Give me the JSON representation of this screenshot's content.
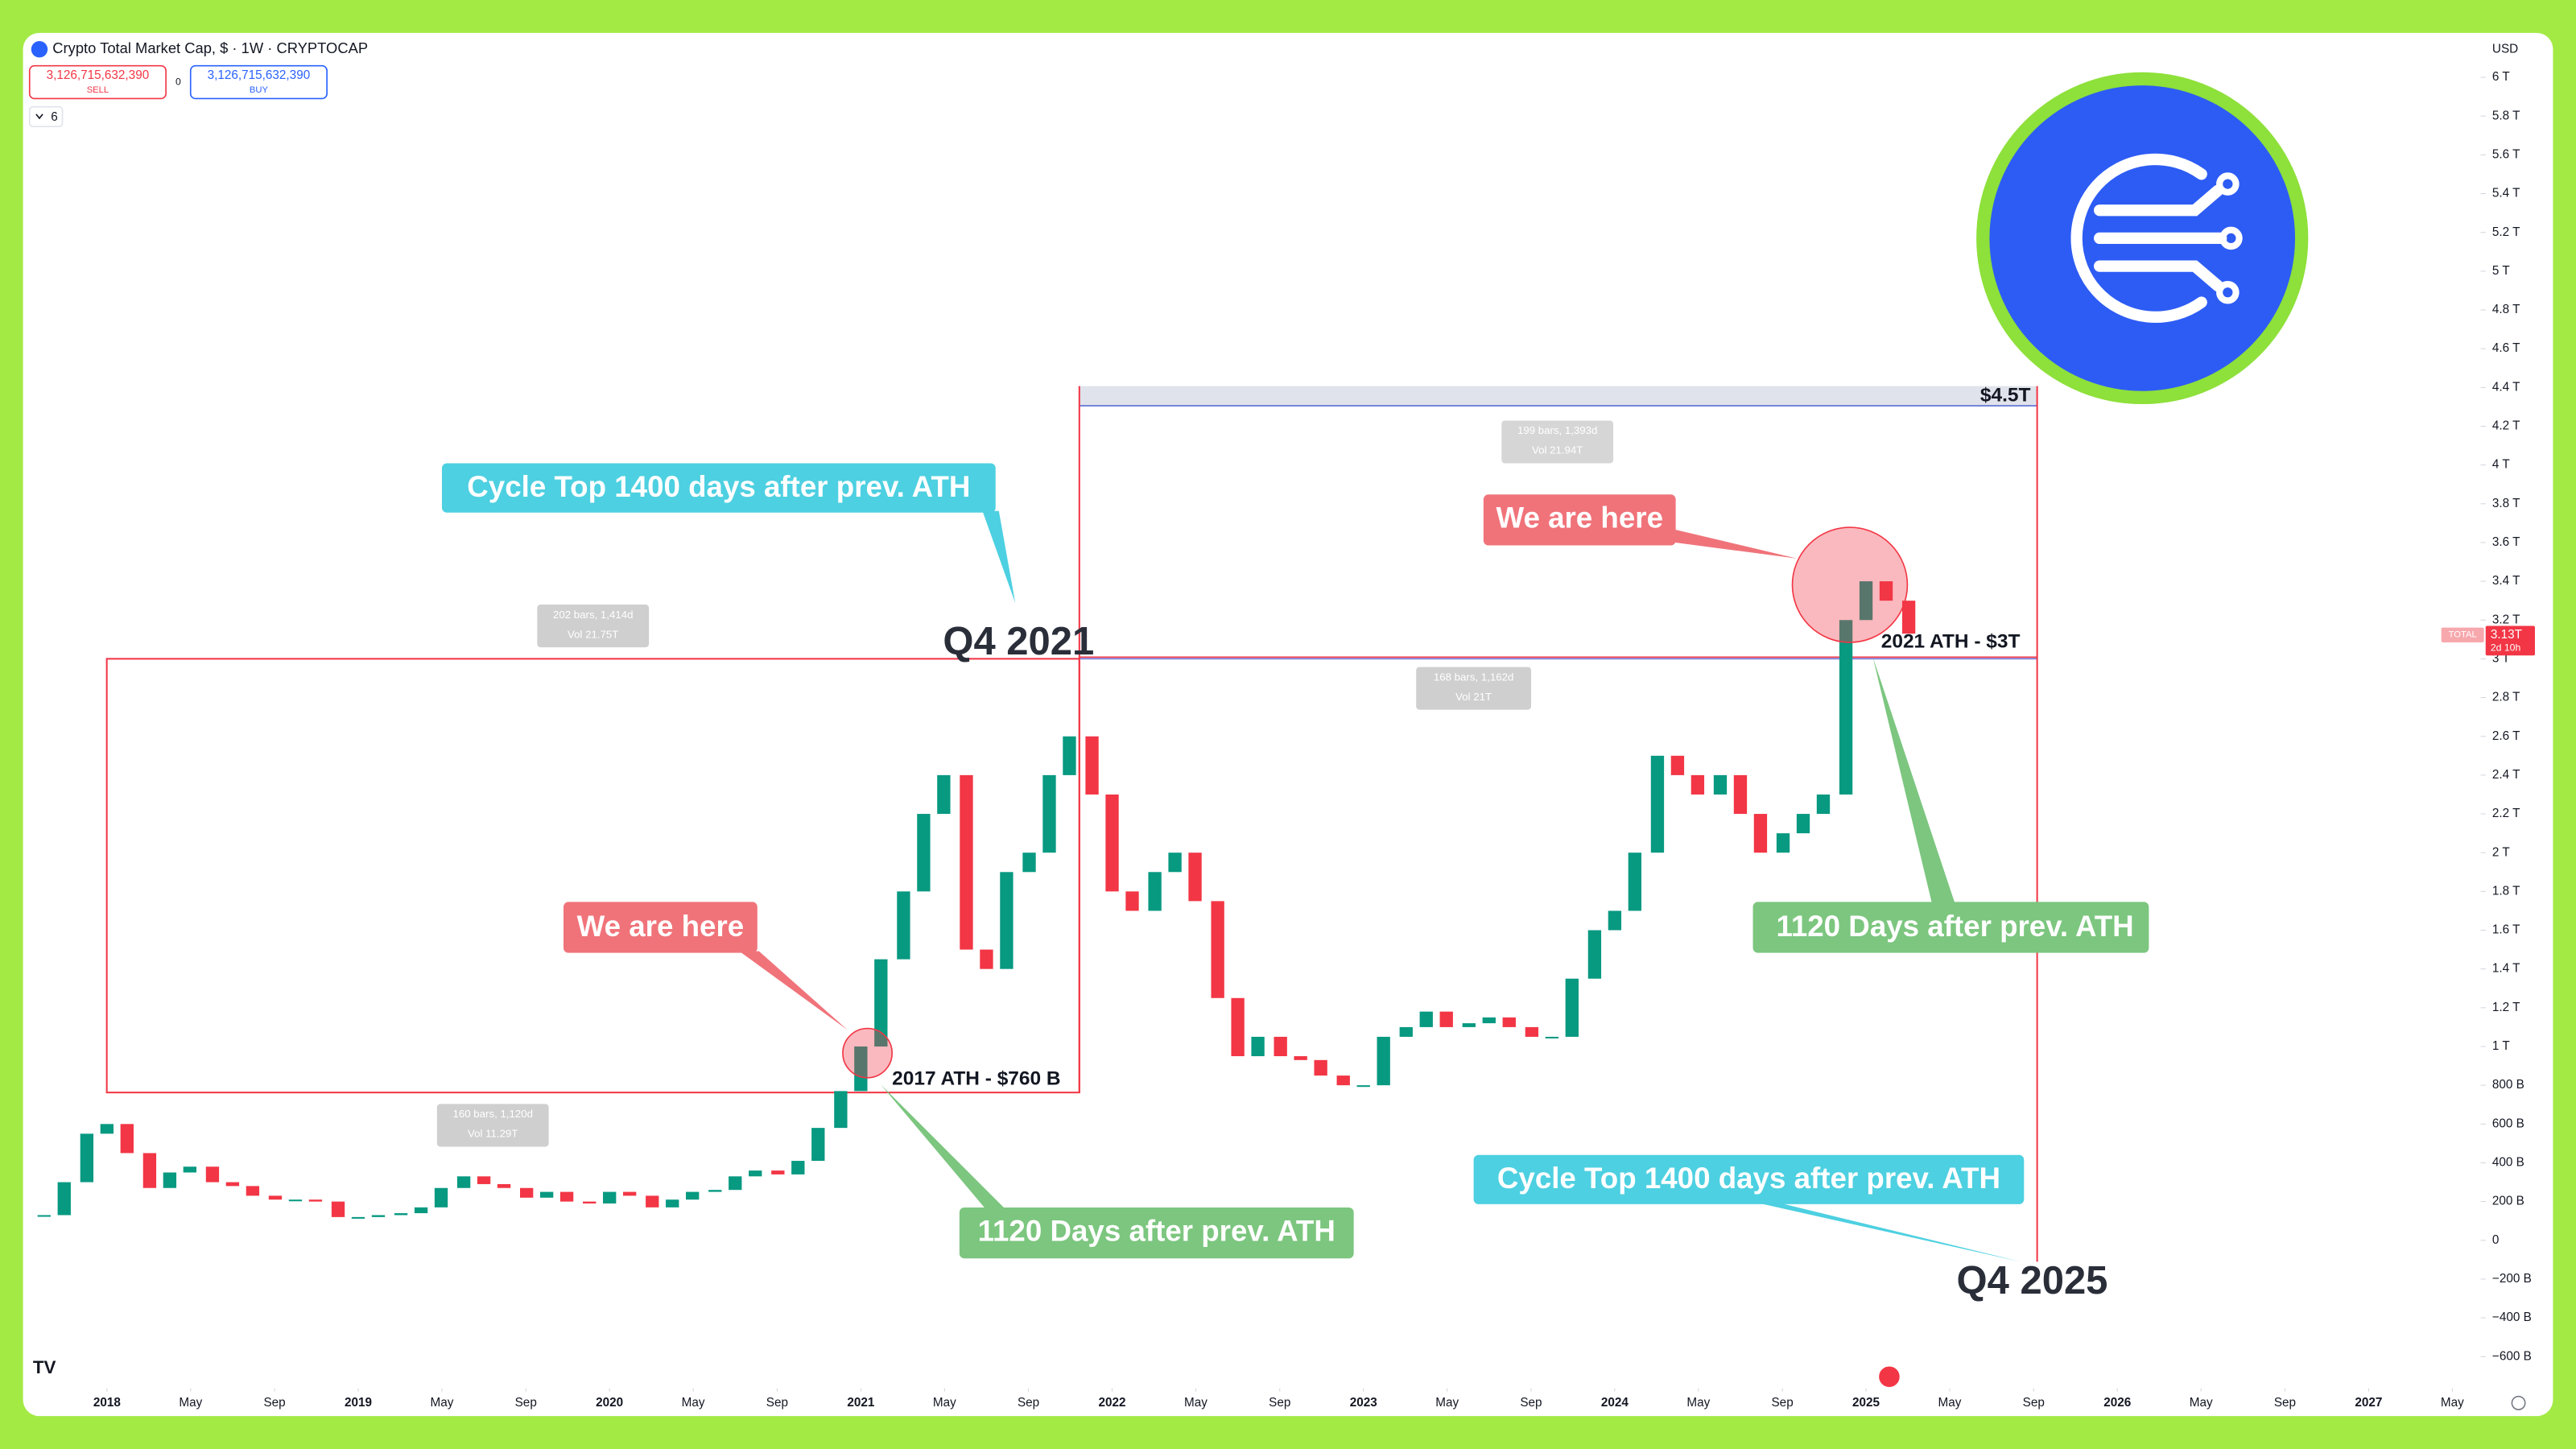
{
  "header": {
    "symbol": "Crypto Total Market Cap, $ · 1W · CRYPTOCAP",
    "sell_price": "3,126,715,632,390",
    "sell_label": "SELL",
    "spread": "0",
    "buy_price": "3,126,715,632,390",
    "buy_label": "BUY",
    "indicators": "6",
    "currency": "USD"
  },
  "chart_data": {
    "type": "candlestick",
    "up_color": "#089981",
    "down_color": "#f23645",
    "grid": false,
    "x": [
      2017.75,
      2017.83,
      2017.92,
      2018.0,
      2018.08,
      2018.17,
      2018.25,
      2018.33,
      2018.42,
      2018.5,
      2018.58,
      2018.67,
      2018.75,
      2018.83,
      2018.92,
      2019.0,
      2019.08,
      2019.17,
      2019.25,
      2019.33,
      2019.42,
      2019.5,
      2019.58,
      2019.67,
      2019.75,
      2019.83,
      2019.92,
      2020.0,
      2020.08,
      2020.17,
      2020.25,
      2020.33,
      2020.42,
      2020.5,
      2020.58,
      2020.67,
      2020.75,
      2020.83,
      2020.92,
      2021.0,
      2021.08,
      2021.17,
      2021.25,
      2021.33,
      2021.42,
      2021.5,
      2021.58,
      2021.67,
      2021.75,
      2021.83,
      2021.92,
      2022.0,
      2022.08,
      2022.17,
      2022.25,
      2022.33,
      2022.42,
      2022.5,
      2022.58,
      2022.67,
      2022.75,
      2022.83,
      2022.92,
      2023.0,
      2023.08,
      2023.17,
      2023.25,
      2023.33,
      2023.42,
      2023.5,
      2023.58,
      2023.67,
      2023.75,
      2023.83,
      2023.92,
      2024.0,
      2024.08,
      2024.17,
      2024.25,
      2024.33,
      2024.42,
      2024.5,
      2024.58,
      2024.67,
      2024.75,
      2024.83,
      2024.92,
      2025.0,
      2025.08,
      2025.17
    ],
    "values": [
      0.13,
      0.3,
      0.55,
      0.6,
      0.45,
      0.27,
      0.35,
      0.38,
      0.3,
      0.28,
      0.23,
      0.21,
      0.21,
      0.2,
      0.12,
      0.12,
      0.13,
      0.14,
      0.17,
      0.27,
      0.33,
      0.29,
      0.27,
      0.22,
      0.25,
      0.2,
      0.19,
      0.25,
      0.23,
      0.17,
      0.21,
      0.25,
      0.26,
      0.33,
      0.36,
      0.34,
      0.41,
      0.58,
      0.77,
      1.0,
      1.45,
      1.8,
      2.2,
      2.4,
      1.5,
      1.4,
      1.9,
      2.0,
      2.4,
      2.6,
      2.3,
      1.8,
      1.7,
      1.9,
      2.0,
      1.75,
      1.25,
      0.95,
      1.05,
      0.95,
      0.93,
      0.85,
      0.8,
      0.8,
      1.05,
      1.1,
      1.18,
      1.1,
      1.12,
      1.15,
      1.1,
      1.05,
      1.05,
      1.35,
      1.6,
      1.7,
      2.0,
      2.5,
      2.4,
      2.3,
      2.4,
      2.2,
      2.0,
      2.1,
      2.2,
      2.3,
      3.2,
      3.4,
      3.3,
      3.13
    ],
    "xlim": [
      2017.666,
      2027.446
    ],
    "xticks": [
      {
        "value": 2018,
        "label": "2018"
      },
      {
        "value": 2018.333,
        "label": "May"
      },
      {
        "value": 2018.667,
        "label": "Sep"
      },
      {
        "value": 2019,
        "label": "2019"
      },
      {
        "value": 2019.333,
        "label": "May"
      },
      {
        "value": 2019.667,
        "label": "Sep"
      },
      {
        "value": 2020,
        "label": "2020"
      },
      {
        "value": 2020.333,
        "label": "May"
      },
      {
        "value": 2020.667,
        "label": "Sep"
      },
      {
        "value": 2021,
        "label": "2021"
      },
      {
        "value": 2021.333,
        "label": "May"
      },
      {
        "value": 2021.667,
        "label": "Sep"
      },
      {
        "value": 2022,
        "label": "2022"
      },
      {
        "value": 2022.333,
        "label": "May"
      },
      {
        "value": 2022.667,
        "label": "Sep"
      },
      {
        "value": 2023,
        "label": "2023"
      },
      {
        "value": 2023.333,
        "label": "May"
      },
      {
        "value": 2023.667,
        "label": "Sep"
      },
      {
        "value": 2024,
        "label": "2024"
      },
      {
        "value": 2024.333,
        "label": "May"
      },
      {
        "value": 2024.667,
        "label": "Sep"
      },
      {
        "value": 2025,
        "label": "2025"
      },
      {
        "value": 2025.333,
        "label": "May"
      },
      {
        "value": 2025.667,
        "label": "Sep"
      },
      {
        "value": 2026,
        "label": "2026"
      },
      {
        "value": 2026.333,
        "label": "May"
      },
      {
        "value": 2026.667,
        "label": "Sep"
      },
      {
        "value": 2027,
        "label": "2027"
      },
      {
        "value": 2027.333,
        "label": "May"
      }
    ],
    "ylim": [
      -0.763,
      6.06
    ],
    "yticks": [
      {
        "value": 6,
        "label": "6 T"
      },
      {
        "value": 5.8,
        "label": "5.8 T"
      },
      {
        "value": 5.6,
        "label": "5.6 T"
      },
      {
        "value": 5.4,
        "label": "5.4 T"
      },
      {
        "value": 5.2,
        "label": "5.2 T"
      },
      {
        "value": 5,
        "label": "5 T"
      },
      {
        "value": 4.8,
        "label": "4.8 T"
      },
      {
        "value": 4.6,
        "label": "4.6 T"
      },
      {
        "value": 4.4,
        "label": "4.4 T"
      },
      {
        "value": 4.2,
        "label": "4.2 T"
      },
      {
        "value": 4,
        "label": "4 T"
      },
      {
        "value": 3.8,
        "label": "3.8 T"
      },
      {
        "value": 3.6,
        "label": "3.6 T"
      },
      {
        "value": 3.4,
        "label": "3.4 T"
      },
      {
        "value": 3.2,
        "label": "3.2 T"
      },
      {
        "value": 3,
        "label": "3 T"
      },
      {
        "value": 2.8,
        "label": "2.8 T"
      },
      {
        "value": 2.6,
        "label": "2.6 T"
      },
      {
        "value": 2.4,
        "label": "2.4 T"
      },
      {
        "value": 2.2,
        "label": "2.2 T"
      },
      {
        "value": 2,
        "label": "2 T"
      },
      {
        "value": 1.8,
        "label": "1.8 T"
      },
      {
        "value": 1.6,
        "label": "1.6 T"
      },
      {
        "value": 1.4,
        "label": "1.4 T"
      },
      {
        "value": 1.2,
        "label": "1.2 T"
      },
      {
        "value": 1,
        "label": "1 T"
      },
      {
        "value": 0.8,
        "label": "800 B"
      },
      {
        "value": 0.6,
        "label": "600 B"
      },
      {
        "value": 0.4,
        "label": "400 B"
      },
      {
        "value": 0.2,
        "label": "200 B"
      },
      0,
      {
        "value": -0.2,
        "label": "−200 B"
      },
      {
        "value": -0.4,
        "label": "−400 B"
      },
      {
        "value": -0.6,
        "label": "−600 B"
      }
    ]
  },
  "price_tag": {
    "symbol": "TOTAL",
    "price": "3.13T",
    "countdown": "2d 10h"
  },
  "annotations": {
    "cycle_top_1": "Cycle Top 1400 days after prev. ATH",
    "cycle_top_2": "Cycle Top 1400 days after prev. ATH",
    "we_are_here_1": "We are here",
    "we_are_here_2": "We are here",
    "days_1": "1120 Days after prev. ATH",
    "days_2": "1120 Days after prev. ATH",
    "q4_2021": "Q4 2021",
    "q4_2025": "Q4 2025",
    "ath_2017": "2017 ATH - $760 B",
    "ath_2021": "2021 ATH - $3T",
    "target": "$4.5T",
    "measure_1": {
      "range": "202 bars, 1,414d",
      "vol": "Vol 21.75T"
    },
    "measure_2": {
      "range": "160 bars, 1,120d",
      "vol": "Vol 11.29T"
    },
    "measure_3": {
      "range": "199 bars, 1,393d",
      "vol": "Vol 21.94T"
    },
    "measure_4": {
      "range": "168 bars, 1,162d",
      "vol": "Vol 21T"
    }
  }
}
